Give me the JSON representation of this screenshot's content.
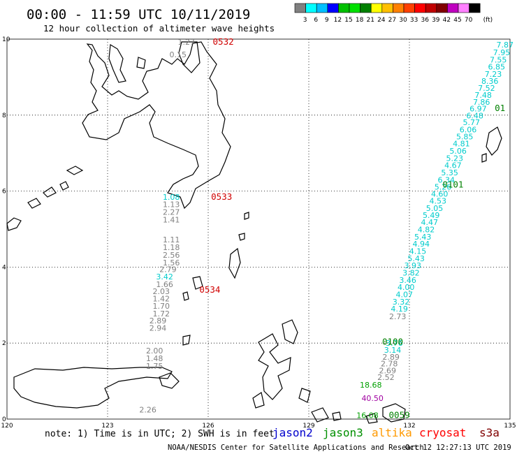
{
  "title": "00:00 - 11:59 UTC 10/11/2019",
  "subtitle": "12 hour collection of altimeter wave heights",
  "legend": {
    "unit": "(ft)",
    "colors": [
      "#808080",
      "#00ffff",
      "#00bfff",
      "#0000ff",
      "#00c000",
      "#00e000",
      "#008000",
      "#ffff00",
      "#ffc000",
      "#ff8000",
      "#ff4000",
      "#ff0000",
      "#c00000",
      "#800000",
      "#c000c0",
      "#ff80ff",
      "#000000"
    ],
    "labels": [
      "3",
      "6",
      "9",
      "12",
      "15",
      "18",
      "21",
      "24",
      "27",
      "30",
      "33",
      "36",
      "39",
      "42",
      "45",
      "70"
    ]
  },
  "axes": {
    "x_ticks": [
      "120",
      "123",
      "126",
      "129",
      "132",
      "135"
    ],
    "y_ticks": [
      "0",
      "2",
      "4",
      "6",
      "8",
      "10"
    ]
  },
  "annotations": [
    {
      "text": "0532",
      "color": "#d00000",
      "lon": 126.45,
      "lat": 9.93
    },
    {
      "text": "0533",
      "color": "#d00000",
      "lon": 126.4,
      "lat": 5.85
    },
    {
      "text": "0534",
      "color": "#d00000",
      "lon": 126.05,
      "lat": 3.4
    },
    {
      "text": "0101",
      "color": "#008000",
      "lon": 133.3,
      "lat": 6.17
    },
    {
      "text": "0100",
      "color": "#008000",
      "lon": 131.5,
      "lat": 2.03
    },
    {
      "text": "01",
      "color": "#008000",
      "lon": 134.7,
      "lat": 8.18
    },
    {
      "text": "0059",
      "color": "#008000",
      "lon": 131.7,
      "lat": 0.1
    }
  ],
  "tracks": [
    {
      "name": "cryosat west",
      "values": [
        {
          "t": "1.27",
          "c": "#808080",
          "lon": 125.35,
          "lat": 9.93
        },
        {
          "t": "0.15",
          "c": "#808080",
          "lon": 125.1,
          "lat": 9.6
        },
        {
          "t": "1.08",
          "c": "#00cccc",
          "lon": 124.9,
          "lat": 5.85
        },
        {
          "t": "1.13",
          "c": "#808080",
          "lon": 124.9,
          "lat": 5.65
        },
        {
          "t": "2.27",
          "c": "#808080",
          "lon": 124.9,
          "lat": 5.45
        },
        {
          "t": "1.41",
          "c": "#808080",
          "lon": 124.9,
          "lat": 5.25
        },
        {
          "t": "1.11",
          "c": "#808080",
          "lon": 124.9,
          "lat": 4.72
        },
        {
          "t": "1.18",
          "c": "#808080",
          "lon": 124.9,
          "lat": 4.52
        },
        {
          "t": "2.56",
          "c": "#808080",
          "lon": 124.9,
          "lat": 4.32
        },
        {
          "t": "1.56",
          "c": "#808080",
          "lon": 124.9,
          "lat": 4.12
        },
        {
          "t": "2.79",
          "c": "#808080",
          "lon": 124.8,
          "lat": 3.94
        },
        {
          "t": "3.42",
          "c": "#00cccc",
          "lon": 124.7,
          "lat": 3.75
        },
        {
          "t": "1.66",
          "c": "#808080",
          "lon": 124.7,
          "lat": 3.55
        },
        {
          "t": "2.03",
          "c": "#808080",
          "lon": 124.6,
          "lat": 3.36
        },
        {
          "t": "1.42",
          "c": "#808080",
          "lon": 124.6,
          "lat": 3.17
        },
        {
          "t": "1.70",
          "c": "#808080",
          "lon": 124.6,
          "lat": 2.98
        },
        {
          "t": "1.72",
          "c": "#808080",
          "lon": 124.6,
          "lat": 2.78
        },
        {
          "t": "2.89",
          "c": "#808080",
          "lon": 124.5,
          "lat": 2.59
        },
        {
          "t": "2.94",
          "c": "#808080",
          "lon": 124.5,
          "lat": 2.4
        },
        {
          "t": "2.00",
          "c": "#808080",
          "lon": 124.4,
          "lat": 1.8
        },
        {
          "t": "1.48",
          "c": "#808080",
          "lon": 124.4,
          "lat": 1.6
        },
        {
          "t": "1.75",
          "c": "#808080",
          "lon": 124.4,
          "lat": 1.4
        },
        {
          "t": "2.26",
          "c": "#808080",
          "lon": 124.2,
          "lat": 0.25
        }
      ]
    },
    {
      "name": "jason3 east",
      "values": [
        {
          "t": "7.87",
          "c": "#00cccc",
          "lon": 134.85,
          "lat": 9.85
        },
        {
          "t": "7.95",
          "c": "#00cccc",
          "lon": 134.75,
          "lat": 9.65
        },
        {
          "t": "7.55",
          "c": "#00cccc",
          "lon": 134.65,
          "lat": 9.46
        },
        {
          "t": "6.85",
          "c": "#00cccc",
          "lon": 134.6,
          "lat": 9.27
        },
        {
          "t": "7.23",
          "c": "#00cccc",
          "lon": 134.5,
          "lat": 9.08
        },
        {
          "t": "8.36",
          "c": "#00cccc",
          "lon": 134.4,
          "lat": 8.9
        },
        {
          "t": "7.52",
          "c": "#00cccc",
          "lon": 134.3,
          "lat": 8.71
        },
        {
          "t": "7.48",
          "c": "#00cccc",
          "lon": 134.2,
          "lat": 8.53
        },
        {
          "t": "7.86",
          "c": "#00cccc",
          "lon": 134.15,
          "lat": 8.35
        },
        {
          "t": "6.97",
          "c": "#00cccc",
          "lon": 134.05,
          "lat": 8.17
        },
        {
          "t": "6.48",
          "c": "#00cccc",
          "lon": 133.95,
          "lat": 7.99
        },
        {
          "t": "5.77",
          "c": "#00cccc",
          "lon": 133.85,
          "lat": 7.81
        },
        {
          "t": "6.06",
          "c": "#00cccc",
          "lon": 133.75,
          "lat": 7.62
        },
        {
          "t": "5.85",
          "c": "#00cccc",
          "lon": 133.65,
          "lat": 7.44
        },
        {
          "t": "4.81",
          "c": "#00cccc",
          "lon": 133.55,
          "lat": 7.25
        },
        {
          "t": "5.06",
          "c": "#00cccc",
          "lon": 133.45,
          "lat": 7.06
        },
        {
          "t": "5.23",
          "c": "#00cccc",
          "lon": 133.35,
          "lat": 6.87
        },
        {
          "t": "4.67",
          "c": "#00cccc",
          "lon": 133.3,
          "lat": 6.68
        },
        {
          "t": "5.35",
          "c": "#00cccc",
          "lon": 133.2,
          "lat": 6.49
        },
        {
          "t": "6.34",
          "c": "#00cccc",
          "lon": 133.1,
          "lat": 6.3
        },
        {
          "t": "5.26",
          "c": "#00cccc",
          "lon": 133.0,
          "lat": 6.11
        },
        {
          "t": "4.60",
          "c": "#00cccc",
          "lon": 132.9,
          "lat": 5.93
        },
        {
          "t": "4.53",
          "c": "#00cccc",
          "lon": 132.85,
          "lat": 5.74
        },
        {
          "t": "5.05",
          "c": "#00cccc",
          "lon": 132.75,
          "lat": 5.55
        },
        {
          "t": "5.49",
          "c": "#00cccc",
          "lon": 132.65,
          "lat": 5.37
        },
        {
          "t": "4.47",
          "c": "#00cccc",
          "lon": 132.6,
          "lat": 5.18
        },
        {
          "t": "4.82",
          "c": "#00cccc",
          "lon": 132.5,
          "lat": 4.99
        },
        {
          "t": "5.43",
          "c": "#00cccc",
          "lon": 132.4,
          "lat": 4.8
        },
        {
          "t": "4.94",
          "c": "#00cccc",
          "lon": 132.35,
          "lat": 4.61
        },
        {
          "t": "4.15",
          "c": "#00cccc",
          "lon": 132.25,
          "lat": 4.42
        },
        {
          "t": "5.43",
          "c": "#00cccc",
          "lon": 132.2,
          "lat": 4.23
        },
        {
          "t": "3.93",
          "c": "#00cccc",
          "lon": 132.1,
          "lat": 4.04
        },
        {
          "t": "3.82",
          "c": "#00cccc",
          "lon": 132.05,
          "lat": 3.85
        },
        {
          "t": "3.46",
          "c": "#00cccc",
          "lon": 131.95,
          "lat": 3.66
        },
        {
          "t": "4.00",
          "c": "#00cccc",
          "lon": 131.9,
          "lat": 3.47
        },
        {
          "t": "4.07",
          "c": "#00cccc",
          "lon": 131.85,
          "lat": 3.28
        },
        {
          "t": "3.32",
          "c": "#00cccc",
          "lon": 131.75,
          "lat": 3.09
        },
        {
          "t": "4.19",
          "c": "#00cccc",
          "lon": 131.7,
          "lat": 2.9
        },
        {
          "t": "2.73",
          "c": "#808080",
          "lon": 131.65,
          "lat": 2.7
        },
        {
          "t": "3.76",
          "c": "#00cccc",
          "lon": 131.55,
          "lat": 2.0
        },
        {
          "t": "3.14",
          "c": "#00cccc",
          "lon": 131.5,
          "lat": 1.82
        },
        {
          "t": "2.89",
          "c": "#808080",
          "lon": 131.45,
          "lat": 1.64
        },
        {
          "t": "2.78",
          "c": "#808080",
          "lon": 131.4,
          "lat": 1.46
        },
        {
          "t": "2.69",
          "c": "#808080",
          "lon": 131.35,
          "lat": 1.28
        },
        {
          "t": "2.52",
          "c": "#808080",
          "lon": 131.3,
          "lat": 1.1
        },
        {
          "t": "18.68",
          "c": "#00a000",
          "lon": 130.85,
          "lat": 0.9
        },
        {
          "t": "40.50",
          "c": "#a000a0",
          "lon": 130.9,
          "lat": 0.55
        },
        {
          "t": "16.08",
          "c": "#00a000",
          "lon": 130.75,
          "lat": 0.1
        }
      ]
    }
  ],
  "footer": {
    "note": "note: 1) Time is in UTC; 2) SWH is in feet",
    "satellites": [
      {
        "name": "jason2",
        "color": "#0000cc"
      },
      {
        "name": "jason3",
        "color": "#009000"
      },
      {
        "name": "altika",
        "color": "#ff9900"
      },
      {
        "name": "cryosat",
        "color": "#ff0000"
      },
      {
        "name": "s3a",
        "color": "#800000"
      }
    ],
    "credit": "NOAA/NESDIS Center for Satellite Applications and Research",
    "timestamp": "Oct 12 12:27:13 UTC 2019"
  }
}
